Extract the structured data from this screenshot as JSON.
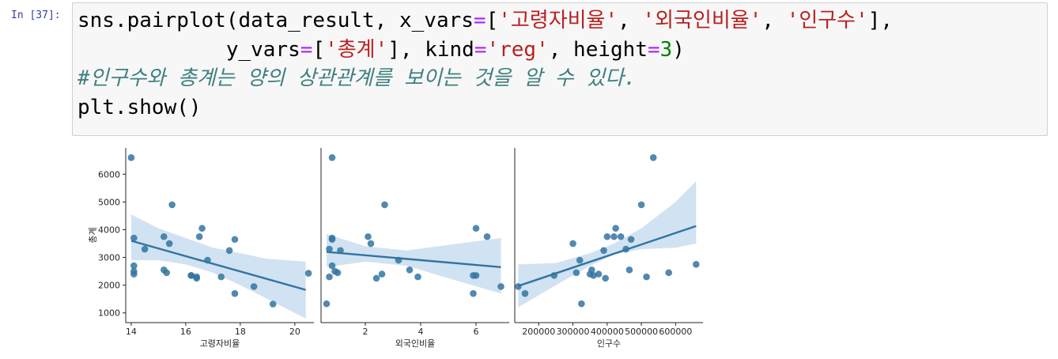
{
  "cell": {
    "prompt": "In [37]:",
    "code_lines": [
      [
        {
          "t": "sns.pairplot(data_result, x_vars",
          "c": "kw"
        },
        {
          "t": "=",
          "c": "op"
        },
        {
          "t": "[",
          "c": "kw"
        },
        {
          "t": "'고령자비율'",
          "c": "str"
        },
        {
          "t": ", ",
          "c": "kw"
        },
        {
          "t": "'외국인비율'",
          "c": "str"
        },
        {
          "t": ", ",
          "c": "kw"
        },
        {
          "t": "'인구수'",
          "c": "str"
        },
        {
          "t": "],",
          "c": "kw"
        }
      ],
      [
        {
          "t": "            y_vars",
          "c": "kw"
        },
        {
          "t": "=",
          "c": "op"
        },
        {
          "t": "[",
          "c": "kw"
        },
        {
          "t": "'총계'",
          "c": "str"
        },
        {
          "t": "], kind",
          "c": "kw"
        },
        {
          "t": "=",
          "c": "op"
        },
        {
          "t": "'reg'",
          "c": "str"
        },
        {
          "t": ", height",
          "c": "kw"
        },
        {
          "t": "=",
          "c": "op"
        },
        {
          "t": "3",
          "c": "num"
        },
        {
          "t": ")",
          "c": "kw"
        }
      ],
      [
        {
          "t": "#인구수와 총계는 양의 상관관계를 보이는 것을 알 수 있다.",
          "c": "cmt"
        }
      ],
      [
        {
          "t": "plt.show()",
          "c": "kw"
        }
      ]
    ]
  },
  "chart_data": {
    "type": "scatter",
    "ylabel": "총계",
    "yticks": [
      1000,
      2000,
      3000,
      4000,
      5000,
      6000
    ],
    "ylim": [
      650,
      6950
    ],
    "colors": {
      "point": "#3274a1",
      "ci": "#c6dbef"
    },
    "panels": [
      {
        "xlabel": "고령자비율",
        "xlim": [
          13.8,
          20.7
        ],
        "xticks": [
          14,
          16,
          18,
          20
        ],
        "points": [
          [
            14.0,
            6600
          ],
          [
            14.1,
            3700
          ],
          [
            14.1,
            2700
          ],
          [
            14.1,
            2500
          ],
          [
            14.1,
            2400
          ],
          [
            14.5,
            3300
          ],
          [
            15.2,
            3750
          ],
          [
            15.2,
            2550
          ],
          [
            15.3,
            2450
          ],
          [
            15.4,
            3500
          ],
          [
            15.5,
            4900
          ],
          [
            16.2,
            2350
          ],
          [
            16.2,
            2350
          ],
          [
            16.4,
            2300
          ],
          [
            16.4,
            2250
          ],
          [
            16.5,
            3750
          ],
          [
            16.6,
            4050
          ],
          [
            16.8,
            2900
          ],
          [
            17.3,
            2300
          ],
          [
            17.6,
            3250
          ],
          [
            17.8,
            3650
          ],
          [
            17.8,
            1700
          ],
          [
            18.5,
            1950
          ],
          [
            19.2,
            1320
          ],
          [
            20.5,
            2430
          ]
        ],
        "fit": [
          [
            14.0,
            3600
          ],
          [
            20.4,
            1830
          ]
        ],
        "ci_upper": [
          [
            14.0,
            4550
          ],
          [
            15.0,
            4050
          ],
          [
            16.0,
            3700
          ],
          [
            17.0,
            3350
          ],
          [
            18.0,
            3150
          ],
          [
            19.0,
            2950
          ],
          [
            20.4,
            2850
          ]
        ],
        "ci_lower": [
          [
            14.0,
            2900
          ],
          [
            15.0,
            2900
          ],
          [
            16.0,
            2750
          ],
          [
            17.0,
            2450
          ],
          [
            18.0,
            2000
          ],
          [
            19.0,
            1500
          ],
          [
            20.4,
            800
          ]
        ]
      },
      {
        "xlabel": "외국인비율",
        "xlim": [
          0.4,
          7.2
        ],
        "xticks": [
          2,
          4,
          6
        ],
        "points": [
          [
            0.6,
            1330
          ],
          [
            0.7,
            3300
          ],
          [
            0.7,
            2300
          ],
          [
            0.8,
            6600
          ],
          [
            0.8,
            3700
          ],
          [
            0.8,
            2700
          ],
          [
            0.8,
            3650
          ],
          [
            0.9,
            2500
          ],
          [
            1.0,
            2450
          ],
          [
            1.1,
            3250
          ],
          [
            2.1,
            3750
          ],
          [
            2.2,
            3500
          ],
          [
            2.4,
            2250
          ],
          [
            2.6,
            2400
          ],
          [
            2.7,
            4900
          ],
          [
            3.2,
            2900
          ],
          [
            3.6,
            2550
          ],
          [
            3.9,
            2300
          ],
          [
            5.9,
            1700
          ],
          [
            5.9,
            2350
          ],
          [
            6.0,
            4050
          ],
          [
            6.0,
            2350
          ],
          [
            6.4,
            3750
          ],
          [
            6.9,
            1950
          ]
        ],
        "fit": [
          [
            0.6,
            3200
          ],
          [
            6.9,
            2650
          ]
        ],
        "ci_upper": [
          [
            0.6,
            3850
          ],
          [
            2.0,
            3400
          ],
          [
            3.5,
            3250
          ],
          [
            5.0,
            3450
          ],
          [
            6.9,
            3700
          ]
        ],
        "ci_lower": [
          [
            0.6,
            2650
          ],
          [
            2.0,
            2850
          ],
          [
            3.5,
            2700
          ],
          [
            5.0,
            2250
          ],
          [
            6.9,
            1700
          ]
        ]
      },
      {
        "xlabel": "인구수",
        "xlim": [
          130000,
          680000
        ],
        "xticks": [
          200000,
          300000,
          400000,
          500000,
          600000
        ],
        "points": [
          [
            140000,
            1950
          ],
          [
            160000,
            1700
          ],
          [
            245000,
            2350
          ],
          [
            300000,
            3500
          ],
          [
            310000,
            2450
          ],
          [
            320000,
            2900
          ],
          [
            325000,
            1330
          ],
          [
            350000,
            2400
          ],
          [
            355000,
            2550
          ],
          [
            360000,
            2350
          ],
          [
            375000,
            2400
          ],
          [
            390000,
            3250
          ],
          [
            395000,
            2250
          ],
          [
            400000,
            3750
          ],
          [
            420000,
            3750
          ],
          [
            425000,
            4050
          ],
          [
            440000,
            3750
          ],
          [
            455000,
            3300
          ],
          [
            465000,
            2550
          ],
          [
            470000,
            3650
          ],
          [
            500000,
            4900
          ],
          [
            515000,
            2300
          ],
          [
            535000,
            6600
          ],
          [
            580000,
            2450
          ],
          [
            660000,
            2750
          ]
        ],
        "fit": [
          [
            140000,
            1970
          ],
          [
            660000,
            4130
          ]
        ],
        "ci_upper": [
          [
            140000,
            2750
          ],
          [
            250000,
            2800
          ],
          [
            350000,
            3150
          ],
          [
            420000,
            3500
          ],
          [
            500000,
            4050
          ],
          [
            600000,
            5000
          ],
          [
            660000,
            5750
          ]
        ],
        "ci_lower": [
          [
            140000,
            1200
          ],
          [
            250000,
            2000
          ],
          [
            350000,
            2700
          ],
          [
            420000,
            3100
          ],
          [
            500000,
            3300
          ],
          [
            600000,
            3350
          ],
          [
            660000,
            3500
          ]
        ]
      }
    ]
  }
}
